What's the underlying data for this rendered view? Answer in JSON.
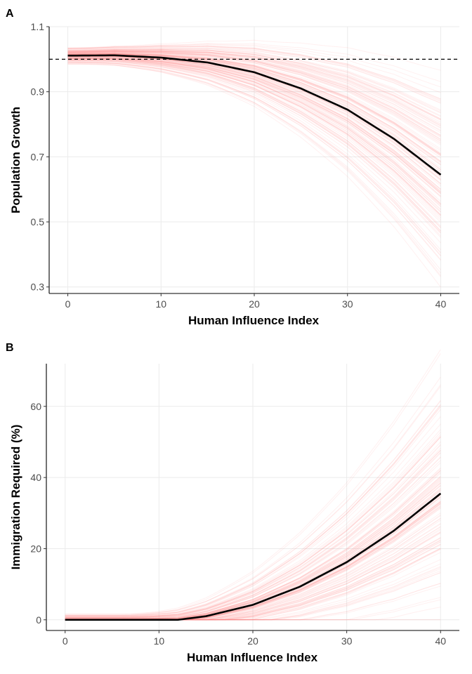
{
  "chart_data": [
    {
      "panel_label": "A",
      "type": "line",
      "xlabel": "Human Influence Index",
      "ylabel": "Population Growth",
      "xlim": [
        -2,
        42
      ],
      "ylim": [
        0.28,
        1.1
      ],
      "xticks": [
        0,
        10,
        20,
        30,
        40
      ],
      "yticks": [
        0.3,
        0.5,
        0.7,
        0.9,
        1.1
      ],
      "ytick_labels": [
        "0.3",
        "0.5",
        "0.7",
        "0.9",
        "1.1"
      ],
      "grid": true,
      "reference_line": {
        "y": 1.0,
        "style": "dashed",
        "color": "#000000"
      },
      "series": [
        {
          "role": "mean",
          "color": "#000000",
          "x": [
            0,
            5,
            10,
            15,
            20,
            25,
            30,
            35,
            40
          ],
          "y": [
            1.011,
            1.012,
            1.005,
            0.99,
            0.96,
            0.91,
            0.845,
            0.755,
            0.645
          ]
        }
      ],
      "uncertainty": {
        "draws": "posterior curves",
        "color": "#ff8080",
        "y_at_x40_range": [
          0.35,
          0.95
        ]
      }
    },
    {
      "panel_label": "B",
      "type": "line",
      "xlabel": "Human Influence Index",
      "ylabel": "Immigration Required (%)",
      "xlim": [
        -2,
        42
      ],
      "ylim": [
        -3,
        72
      ],
      "xticks": [
        0,
        10,
        20,
        30,
        40
      ],
      "yticks": [
        0,
        20,
        40,
        60
      ],
      "ytick_labels": [
        "0",
        "20",
        "40",
        "60"
      ],
      "grid": true,
      "series": [
        {
          "role": "mean",
          "color": "#000000",
          "x": [
            0,
            5,
            10,
            12,
            15,
            20,
            25,
            30,
            35,
            40
          ],
          "y": [
            0,
            0,
            0,
            0,
            1,
            4.2,
            9.3,
            16.2,
            25.0,
            35.5
          ]
        }
      ],
      "uncertainty": {
        "draws": "posterior curves",
        "color": "#ff8080",
        "y_at_x40_range": [
          10,
          66
        ]
      }
    }
  ]
}
